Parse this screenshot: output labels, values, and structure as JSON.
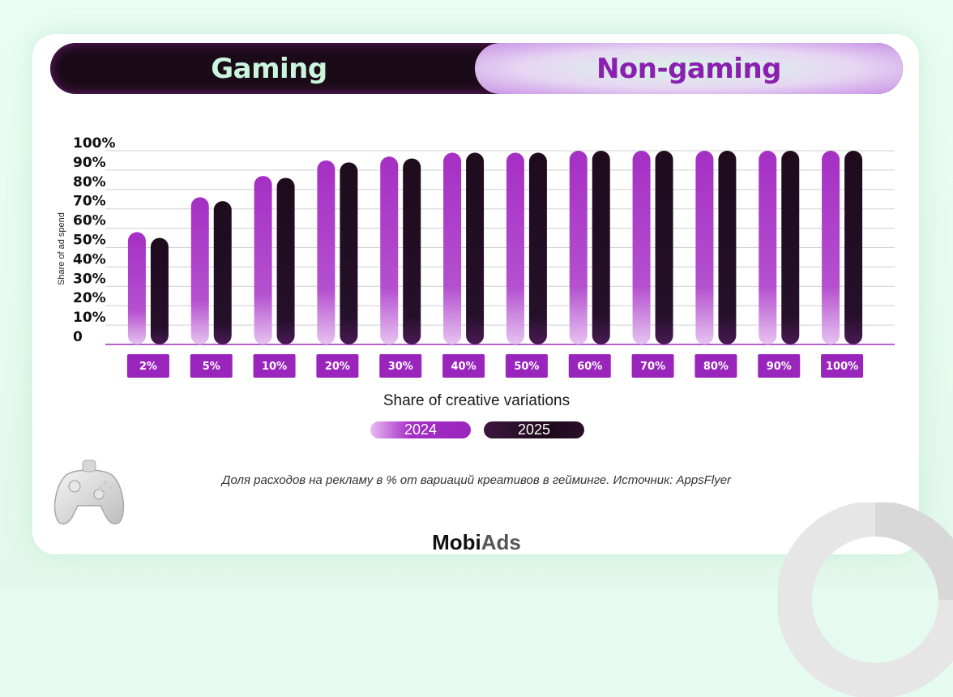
{
  "tabs": {
    "gaming": "Gaming",
    "non_gaming": "Non-gaming",
    "active": "non_gaming"
  },
  "chart_data": {
    "type": "bar",
    "title": "",
    "xlabel": "Share of creative variations",
    "ylabel": "Share of ad spend",
    "ylim": [
      0,
      100
    ],
    "y_ticks": [
      "0",
      "10%",
      "20%",
      "30%",
      "40%",
      "50%",
      "60%",
      "70%",
      "80%",
      "90%",
      "100%"
    ],
    "categories": [
      "2%",
      "5%",
      "10%",
      "20%",
      "30%",
      "40%",
      "50%",
      "60%",
      "70%",
      "80%",
      "90%",
      "100%"
    ],
    "series": [
      {
        "name": "2024",
        "color": "#a52fc4",
        "values": [
          58,
          76,
          87,
          95,
          97,
          99,
          99,
          100,
          100,
          100,
          100,
          100
        ]
      },
      {
        "name": "2025",
        "color": "#1e0b1c",
        "values": [
          55,
          74,
          86,
          94,
          96,
          99,
          99,
          100,
          100,
          100,
          100,
          100
        ]
      }
    ],
    "grid": true,
    "legend": "bottom"
  },
  "caption": "Доля расходов на рекламу в % от вариаций креативов в гейминге. Источник: AppsFlyer",
  "brand": {
    "part1": "Mobi",
    "part2": "Ads",
    "color1": "#111111",
    "color2": "#555555"
  },
  "icons": {
    "decor": "gamepad-icon"
  }
}
